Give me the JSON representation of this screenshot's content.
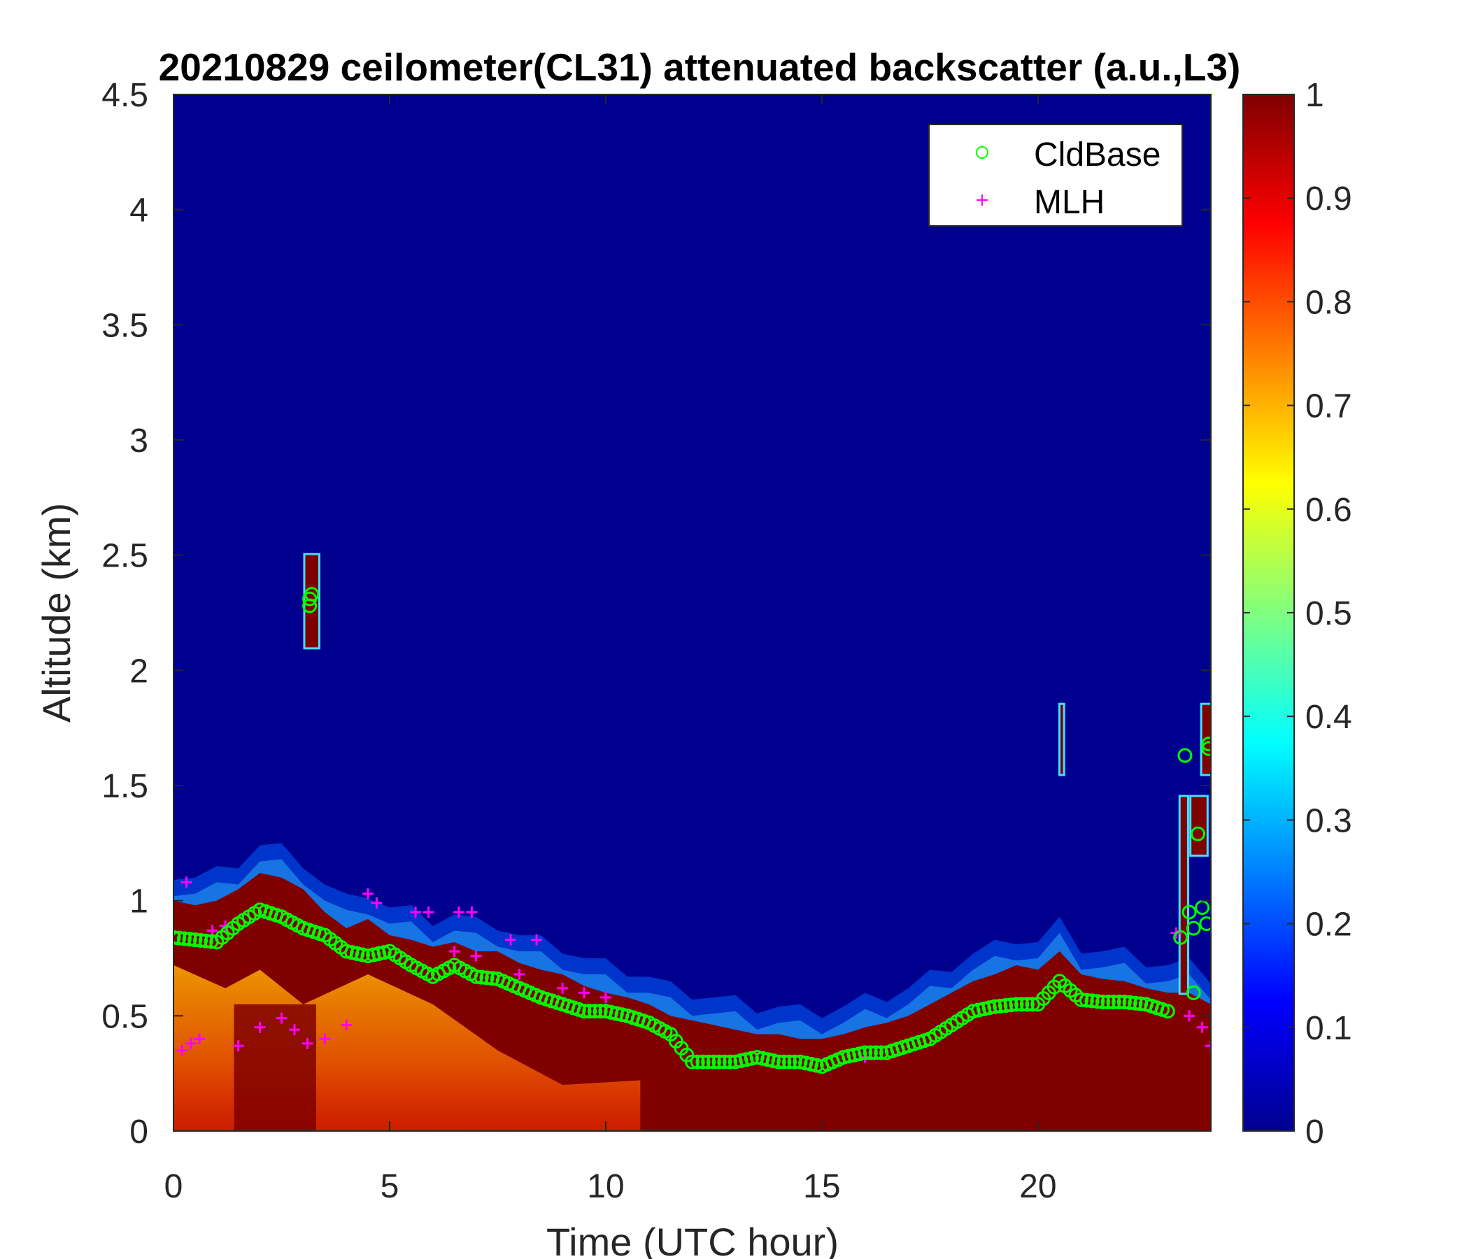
{
  "chart_data": {
    "type": "heatmap",
    "title": "20210829 ceilometer(CL31) attenuated backscatter (a.u.,L3)",
    "xlabel": "Time (UTC hour)",
    "ylabel": "Altitude (km)",
    "xlim": [
      0,
      24
    ],
    "ylim": [
      0,
      4.5
    ],
    "xticks": [
      "0",
      "5",
      "10",
      "15",
      "20"
    ],
    "yticks": [
      "0",
      "0.5",
      "1",
      "1.5",
      "2",
      "2.5",
      "3",
      "3.5",
      "4",
      "4.5"
    ],
    "colorbar": {
      "range": [
        0,
        1
      ],
      "ticks": [
        "0",
        "0.1",
        "0.2",
        "0.3",
        "0.4",
        "0.5",
        "0.6",
        "0.7",
        "0.8",
        "0.9",
        "1"
      ],
      "colormap": "jet"
    },
    "colors": {
      "background": "#00008f",
      "cloud_fill": "#800000",
      "cldbase": "#00ff00",
      "mlh": "#ff00ff"
    },
    "legend": {
      "position": "top-right",
      "entries": [
        "CldBase",
        "MLH"
      ]
    },
    "layer_top_km": {
      "x": [
        0,
        0.5,
        1,
        1.5,
        2,
        2.5,
        3,
        3.5,
        4,
        4.5,
        5,
        5.5,
        6,
        6.5,
        7,
        7.5,
        8,
        8.5,
        9,
        9.5,
        10,
        10.5,
        11,
        11.5,
        12,
        12.5,
        13,
        13.5,
        14,
        14.5,
        15,
        15.5,
        16,
        16.5,
        17,
        17.5,
        18,
        18.5,
        19,
        19.5,
        20,
        20.5,
        21,
        21.5,
        22,
        22.5,
        23,
        23.5,
        24
      ],
      "y": [
        1.0,
        0.98,
        1.0,
        1.05,
        1.12,
        1.1,
        1.05,
        0.95,
        0.88,
        0.92,
        0.85,
        0.83,
        0.8,
        0.82,
        0.78,
        0.78,
        0.73,
        0.7,
        0.68,
        0.63,
        0.6,
        0.58,
        0.55,
        0.5,
        0.48,
        0.46,
        0.44,
        0.42,
        0.42,
        0.4,
        0.4,
        0.42,
        0.45,
        0.47,
        0.5,
        0.55,
        0.6,
        0.65,
        0.68,
        0.72,
        0.7,
        0.78,
        0.68,
        0.66,
        0.65,
        0.62,
        0.6,
        0.6,
        0.55
      ]
    },
    "series": [
      {
        "name": "CldBase",
        "marker": "circle",
        "x": [
          0,
          0.5,
          1,
          1.5,
          2,
          2.5,
          3,
          3.5,
          4,
          4.5,
          5,
          5.5,
          6,
          6.5,
          7,
          7.5,
          8,
          8.5,
          9,
          9.5,
          10,
          10.5,
          11,
          11.5,
          12,
          12.5,
          13,
          13.5,
          14,
          14.5,
          15,
          15.5,
          16,
          16.5,
          17,
          17.5,
          18,
          18.5,
          19,
          19.5,
          20,
          20.5,
          21,
          21.5,
          22,
          22.5,
          23,
          23.3,
          23.6,
          23.9
        ],
        "y": [
          0.84,
          0.83,
          0.82,
          0.9,
          0.96,
          0.93,
          0.88,
          0.85,
          0.78,
          0.76,
          0.78,
          0.72,
          0.67,
          0.72,
          0.67,
          0.66,
          0.62,
          0.58,
          0.55,
          0.52,
          0.52,
          0.5,
          0.47,
          0.42,
          0.3,
          0.3,
          0.3,
          0.32,
          0.3,
          0.3,
          0.28,
          0.32,
          0.34,
          0.34,
          0.37,
          0.4,
          0.46,
          0.52,
          0.54,
          0.55,
          0.55,
          0.65,
          0.57,
          0.56,
          0.56,
          0.55,
          0.52,
          0.84,
          0.88,
          0.9
        ]
      },
      {
        "name": "CldBase",
        "marker": "circle",
        "x": [
          3.15,
          3.15,
          3.2,
          23.4,
          23.7,
          23.95,
          23.95,
          23.8,
          23.5,
          23.6
        ],
        "y": [
          2.31,
          2.28,
          2.33,
          1.63,
          1.29,
          1.68,
          1.66,
          0.97,
          0.95,
          0.6
        ]
      },
      {
        "name": "MLH",
        "marker": "plus",
        "x": [
          0.2,
          0.4,
          0.6,
          1.5,
          2.0,
          2.5,
          2.8,
          3.1,
          3.5,
          4.0,
          0.3,
          0.9,
          1.2,
          4.5,
          4.7,
          5.6,
          5.9,
          6.6,
          6.9,
          7.8,
          8.4,
          6.5,
          7.0,
          8.0,
          9.0,
          9.5,
          10.0,
          16.0,
          23.2,
          23.5,
          23.8,
          24.0
        ],
        "y": [
          0.35,
          0.38,
          0.4,
          0.37,
          0.45,
          0.49,
          0.44,
          0.38,
          0.4,
          0.46,
          1.08,
          0.87,
          0.89,
          1.03,
          0.99,
          0.95,
          0.95,
          0.95,
          0.95,
          0.83,
          0.83,
          0.78,
          0.76,
          0.68,
          0.62,
          0.6,
          0.58,
          0.32,
          0.86,
          0.5,
          0.45,
          0.37
        ]
      }
    ],
    "clouds": [
      {
        "x0": 3.05,
        "x1": 3.35,
        "y0": 2.1,
        "y1": 2.5
      },
      {
        "x0": 20.52,
        "x1": 20.58,
        "y0": 1.55,
        "y1": 1.85
      },
      {
        "x0": 23.3,
        "x1": 23.45,
        "y0": 0.6,
        "y1": 1.45
      },
      {
        "x0": 23.55,
        "x1": 23.9,
        "y0": 1.2,
        "y1": 1.45
      },
      {
        "x0": 23.8,
        "x1": 24.0,
        "y0": 1.55,
        "y1": 1.85
      }
    ]
  }
}
